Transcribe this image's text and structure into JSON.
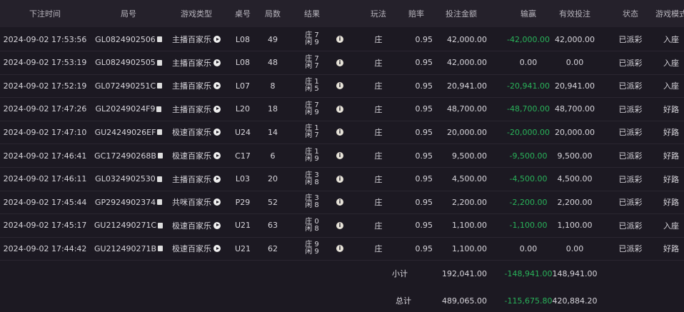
{
  "headers": [
    "下注时间",
    "局号",
    "游戏类型",
    "桌号",
    "局数",
    "结果",
    "",
    "玩法",
    "赔率",
    "投注金额",
    "输赢",
    "有效投注",
    "状态",
    "游戏模式"
  ],
  "result_labels": {
    "banker": "庄",
    "player": "闲"
  },
  "rows": [
    {
      "time": "2024-09-02 17:53:56",
      "id": "GL0824902506",
      "type": "主播百家乐",
      "table": "L08",
      "round": "49",
      "banker": "7",
      "player": "9",
      "play": "庄",
      "odds": "0.95",
      "amount": "42,000.00",
      "winloss": "-42,000.00",
      "loss": true,
      "valid": "42,000.00",
      "status": "已派彩",
      "mode": "入座"
    },
    {
      "time": "2024-09-02 17:53:19",
      "id": "GL0824902505",
      "type": "主播百家乐",
      "table": "L08",
      "round": "48",
      "banker": "7",
      "player": "7",
      "play": "庄",
      "odds": "0.95",
      "amount": "42,000.00",
      "winloss": "0.00",
      "loss": false,
      "valid": "0.00",
      "status": "已派彩",
      "mode": "入座"
    },
    {
      "time": "2024-09-02 17:52:19",
      "id": "GL072490251C",
      "type": "主播百家乐",
      "table": "L07",
      "round": "8",
      "banker": "1",
      "player": "5",
      "play": "庄",
      "odds": "0.95",
      "amount": "20,941.00",
      "winloss": "-20,941.00",
      "loss": true,
      "valid": "20,941.00",
      "status": "已派彩",
      "mode": "入座"
    },
    {
      "time": "2024-09-02 17:47:26",
      "id": "GL20249024F9",
      "type": "主播百家乐",
      "table": "L20",
      "round": "18",
      "banker": "7",
      "player": "9",
      "play": "庄",
      "odds": "0.95",
      "amount": "48,700.00",
      "winloss": "-48,700.00",
      "loss": true,
      "valid": "48,700.00",
      "status": "已派彩",
      "mode": "好路"
    },
    {
      "time": "2024-09-02 17:47:10",
      "id": "GU24249026EF",
      "type": "极速百家乐",
      "table": "U24",
      "round": "14",
      "banker": "1",
      "player": "7",
      "play": "庄",
      "odds": "0.95",
      "amount": "20,000.00",
      "winloss": "-20,000.00",
      "loss": true,
      "valid": "20,000.00",
      "status": "已派彩",
      "mode": "好路"
    },
    {
      "time": "2024-09-02 17:46:41",
      "id": "GC172490268B",
      "type": "极速百家乐",
      "table": "C17",
      "round": "6",
      "banker": "1",
      "player": "9",
      "play": "庄",
      "odds": "0.95",
      "amount": "9,500.00",
      "winloss": "-9,500.00",
      "loss": true,
      "valid": "9,500.00",
      "status": "已派彩",
      "mode": "好路"
    },
    {
      "time": "2024-09-02 17:46:11",
      "id": "GL0324902530",
      "type": "主播百家乐",
      "table": "L03",
      "round": "20",
      "banker": "3",
      "player": "8",
      "play": "庄",
      "odds": "0.95",
      "amount": "4,500.00",
      "winloss": "-4,500.00",
      "loss": true,
      "valid": "4,500.00",
      "status": "已派彩",
      "mode": "好路"
    },
    {
      "time": "2024-09-02 17:45:44",
      "id": "GP2924902374",
      "type": "共咪百家乐",
      "table": "P29",
      "round": "52",
      "banker": "3",
      "player": "8",
      "play": "庄",
      "odds": "0.95",
      "amount": "2,200.00",
      "winloss": "-2,200.00",
      "loss": true,
      "valid": "2,200.00",
      "status": "已派彩",
      "mode": "好路"
    },
    {
      "time": "2024-09-02 17:45:17",
      "id": "GU212490271C",
      "type": "极速百家乐",
      "table": "U21",
      "round": "63",
      "banker": "0",
      "player": "8",
      "play": "庄",
      "odds": "0.95",
      "amount": "1,100.00",
      "winloss": "-1,100.00",
      "loss": true,
      "valid": "1,100.00",
      "status": "已派彩",
      "mode": "入座"
    },
    {
      "time": "2024-09-02 17:44:42",
      "id": "GU212490271B",
      "type": "极速百家乐",
      "table": "U21",
      "round": "62",
      "banker": "9",
      "player": "9",
      "play": "庄",
      "odds": "0.95",
      "amount": "1,100.00",
      "winloss": "0.00",
      "loss": false,
      "valid": "0.00",
      "status": "已派彩",
      "mode": "好路"
    }
  ],
  "subtotal": {
    "label": "小计",
    "amount": "192,041.00",
    "winloss": "-148,941.00",
    "valid": "148,941.00"
  },
  "total": {
    "label": "总计",
    "amount": "489,065.00",
    "winloss": "-115,675.80",
    "valid": "420,884.20"
  },
  "colors": {
    "background": "#1c1922",
    "header": "#25212b",
    "loss": "#29b35a"
  },
  "icons": {
    "copy": "copy-icon",
    "play": "play-icon",
    "info": "info-icon"
  }
}
